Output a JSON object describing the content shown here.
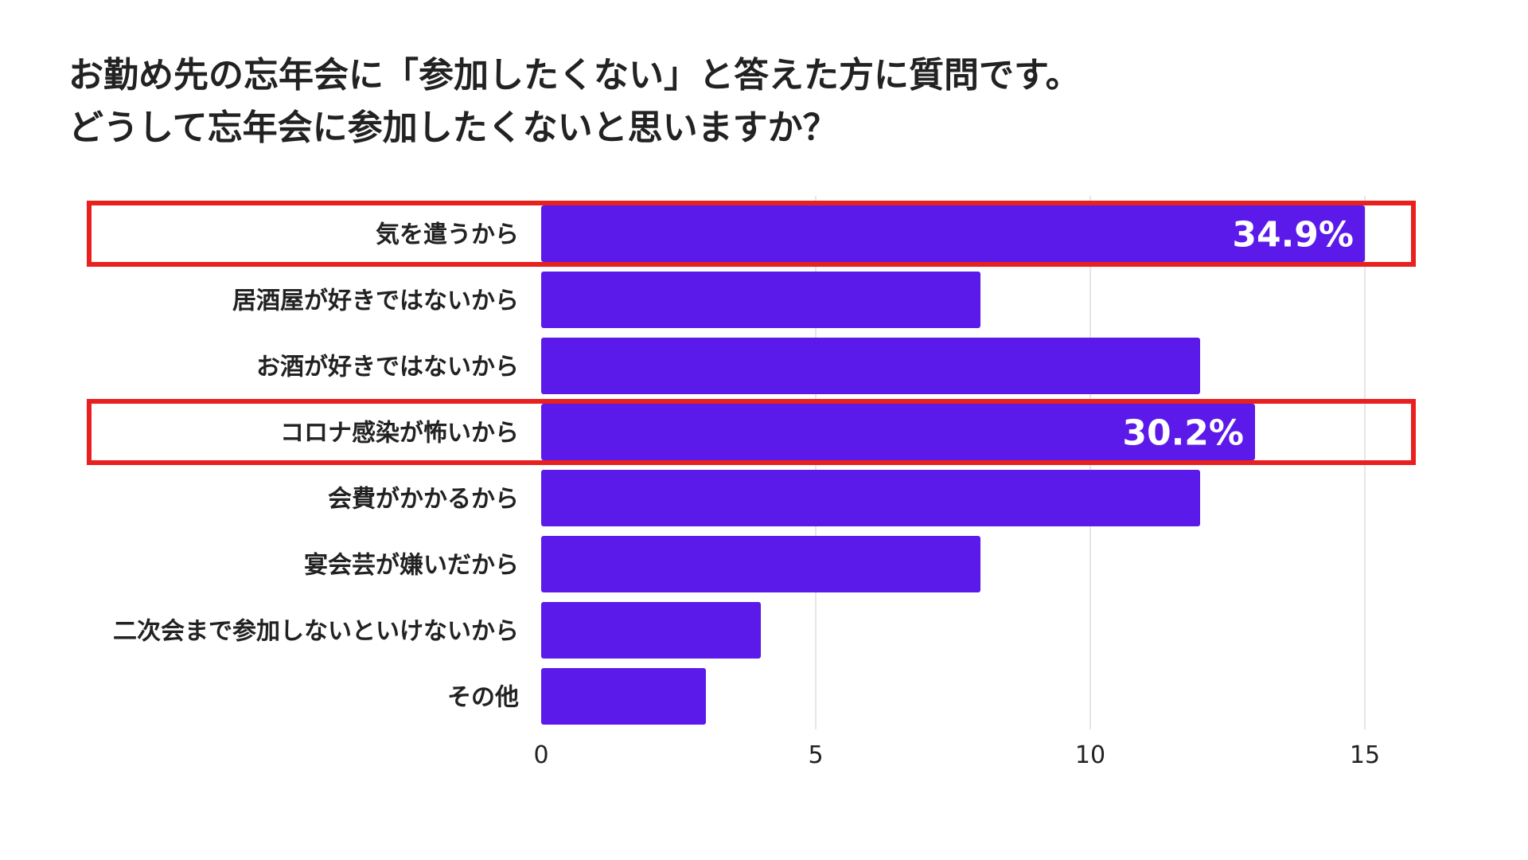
{
  "title_lines": [
    "お勤め先の忘年会に「参加したくない」と答えた方に質問です。",
    "どうして忘年会に参加したくないと思いますか？"
  ],
  "colors": {
    "bar": "#5b1aea",
    "highlight": "#e8211f",
    "grid": "#dddddd",
    "text": "#222222",
    "bar_label": "#ffffff"
  },
  "chart_data": {
    "type": "bar",
    "orientation": "horizontal",
    "categories": [
      "気を遣うから",
      "居酒屋が好きではないから",
      "お酒が好きではないから",
      "コロナ感染が怖いから",
      "会費がかかるから",
      "宴会芸が嫌いだから",
      "二次会まで参加しないといけないから",
      "その他"
    ],
    "values": [
      15,
      8,
      12,
      13,
      12,
      8,
      4,
      3
    ],
    "data_labels": [
      "34.9%",
      "",
      "",
      "30.2%",
      "",
      "",
      "",
      ""
    ],
    "highlighted": [
      true,
      false,
      false,
      true,
      false,
      false,
      false,
      false
    ],
    "x_ticks": [
      0,
      5,
      10,
      15
    ],
    "xlim": [
      0,
      16
    ],
    "grid": true
  }
}
